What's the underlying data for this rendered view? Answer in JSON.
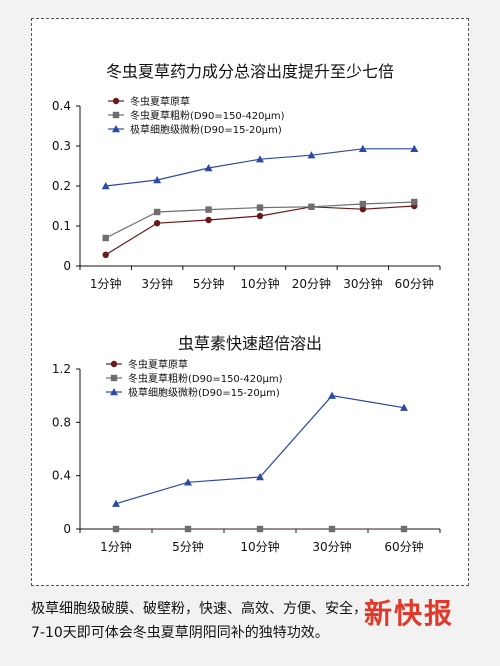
{
  "colors": {
    "series1": "#6b1a1a",
    "series2": "#6e6e6e",
    "series3": "#2d4aa6",
    "logo": "#e0392a"
  },
  "chart_data": [
    {
      "type": "line",
      "title": "冬虫夏草药力成分总溶出度提升至少七倍",
      "categories": [
        "1分钟",
        "3分钟",
        "5分钟",
        "10分钟",
        "20分钟",
        "30分钟",
        "60分钟"
      ],
      "ylim": [
        0,
        0.4
      ],
      "yticks": [
        "0",
        "0.1",
        "0.2",
        "0.3",
        "0.4"
      ],
      "legend_position": "top-left",
      "series": [
        {
          "name": "冬虫夏草原草",
          "values": [
            0.028,
            0.107,
            0.115,
            0.125,
            0.148,
            0.142,
            0.15
          ]
        },
        {
          "name": "冬虫夏草粗粉(D90=150-420μm)",
          "values": [
            0.07,
            0.135,
            0.141,
            0.146,
            0.148,
            0.155,
            0.16
          ]
        },
        {
          "name": "极草细胞级微粉(D90=15-20μm)",
          "values": [
            0.2,
            0.215,
            0.245,
            0.267,
            0.277,
            0.293,
            0.293
          ]
        }
      ]
    },
    {
      "type": "line",
      "title": "虫草素快速超倍溶出",
      "categories": [
        "1分钟",
        "5分钟",
        "10分钟",
        "30分钟",
        "60分钟"
      ],
      "ylim": [
        0,
        1.2
      ],
      "yticks": [
        "0",
        "0.4",
        "0.8",
        "1.2"
      ],
      "legend_position": "top-left",
      "series": [
        {
          "name": "冬虫夏草原草",
          "values": [
            0,
            0,
            0,
            0,
            0
          ]
        },
        {
          "name": "冬虫夏草粗粉(D90=150-420μm)",
          "values": [
            0,
            0,
            0,
            0,
            0
          ]
        },
        {
          "name": "极草细胞级微粉(D90=15-20μm)",
          "values": [
            0.19,
            0.35,
            0.39,
            1.0,
            0.91
          ]
        }
      ]
    }
  ],
  "caption": {
    "line1": "极草细胞级破膜、破壁粉，快速、高效、方便、安全，",
    "line2": "7-10天即可体会冬虫夏草阴阳同补的独特功效。"
  },
  "logo_text": "新快报"
}
